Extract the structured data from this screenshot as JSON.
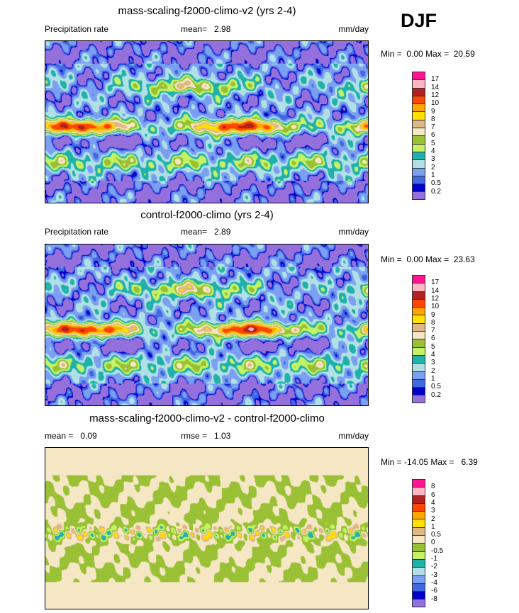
{
  "season": "DJF",
  "colors": [
    "#9370db",
    "#0000cd",
    "#4169e1",
    "#7b9ff2",
    "#b0e0e6",
    "#20b2aa",
    "#c5f263",
    "#9ac136",
    "#f5e6c4",
    "#deb887",
    "#ffe000",
    "#ffa500",
    "#ff4500",
    "#b22222",
    "#ffb6c1",
    "#ff1493"
  ],
  "panels": [
    {
      "title": "mass-scaling-f2000-climo-v2 (yrs 2-4)",
      "left": "Precipitation rate",
      "mean_label": "mean=",
      "mean": "2.98",
      "units": "mm/day",
      "min_label": "Min =",
      "min": "0.00",
      "max_label": "Max =",
      "max": "20.59",
      "levels": [
        "0.2",
        "0.5",
        "1",
        "2",
        "3",
        "4",
        "5",
        "6",
        "7",
        "8",
        "9",
        "10",
        "12",
        "14",
        "17"
      ]
    },
    {
      "title": "control-f2000-climo (yrs 2-4)",
      "left": "Precipitation rate",
      "mean_label": "mean=",
      "mean": "2.89",
      "units": "mm/day",
      "min_label": "Min =",
      "min": "0.00",
      "max_label": "Max =",
      "max": "23.63",
      "levels": [
        "0.2",
        "0.5",
        "1",
        "2",
        "3",
        "4",
        "5",
        "6",
        "7",
        "8",
        "9",
        "10",
        "12",
        "14",
        "17"
      ]
    },
    {
      "title": "mass-scaling-f2000-climo-v2 - control-f2000-climo",
      "left": "mean =",
      "mean_label": "rmse =",
      "mean": "0.09",
      "rmse": "1.03",
      "units": "mm/day",
      "min_label": "Min =",
      "min": "-14.05",
      "max_label": "Max =",
      "max": "6.39",
      "levels": [
        "-8",
        "-6",
        "-4",
        "-3",
        "-2",
        "-1",
        "-0.5",
        "0",
        "0.5",
        "1",
        "2",
        "3",
        "4",
        "6",
        "8"
      ]
    }
  ]
}
